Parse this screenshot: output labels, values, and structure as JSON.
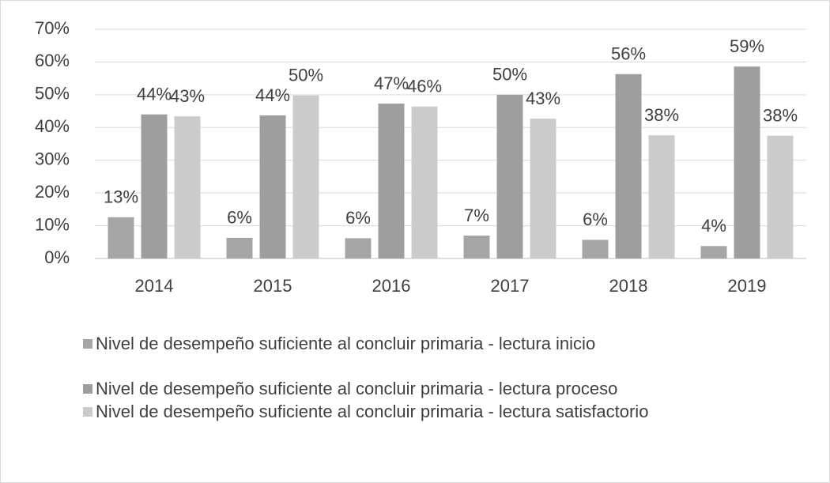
{
  "chart_data": {
    "type": "bar",
    "categories": [
      "2014",
      "2015",
      "2016",
      "2017",
      "2018",
      "2019"
    ],
    "series": [
      {
        "name": "Nivel de desempeño suficiente al concluir primaria - lectura inicio",
        "color": "#a5a5a5",
        "values": [
          12.6,
          6.3,
          6.2,
          7,
          5.7,
          3.8
        ],
        "value_labels": [
          "13%",
          "6%",
          "6%",
          "7%",
          "6%",
          "4%"
        ]
      },
      {
        "name": "Nivel de desempeño suficiente al concluir primaria - lectura proceso",
        "color": "#9e9e9e",
        "values": [
          44,
          43.7,
          47.3,
          50,
          56.3,
          58.6
        ],
        "value_labels": [
          "44%",
          "44%",
          "47%",
          "50%",
          "56%",
          "59%"
        ]
      },
      {
        "name": "Nivel de desempeño suficiente al concluir primaria - lectura satisfactorio",
        "color": "#cbcbcb",
        "values": [
          43.4,
          49.8,
          46.4,
          42.7,
          37.6,
          37.5
        ],
        "value_labels": [
          "43%",
          "50%",
          "46%",
          "43%",
          "38%",
          "38%"
        ]
      }
    ],
    "ylim": [
      0,
      70
    ],
    "yticks": [
      {
        "value": 0,
        "label": "0%"
      },
      {
        "value": 10,
        "label": "10%"
      },
      {
        "value": 20,
        "label": "20%"
      },
      {
        "value": 30,
        "label": "30%"
      },
      {
        "value": 40,
        "label": "40%"
      },
      {
        "value": 50,
        "label": "50%"
      },
      {
        "value": 60,
        "label": "60%"
      },
      {
        "value": 70,
        "label": "70%"
      }
    ],
    "grid": true
  }
}
